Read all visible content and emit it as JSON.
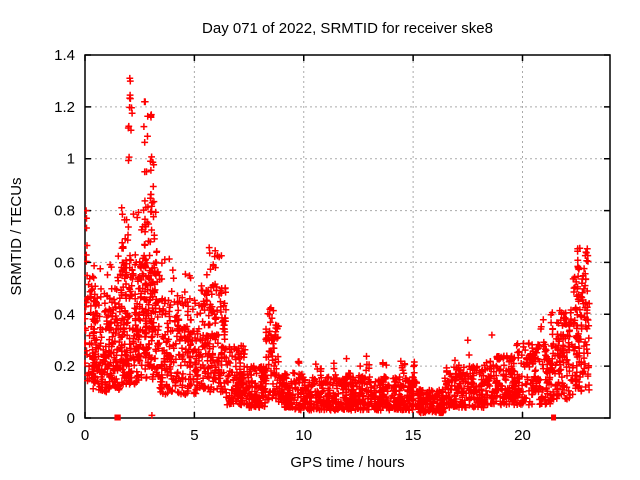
{
  "chart_data": {
    "type": "scatter",
    "title": "Day 071 of 2022, SRMTID for receiver ske8",
    "xlabel": "GPS time / hours",
    "ylabel": "SRMTID / TECUs",
    "xlim": [
      0,
      24
    ],
    "ylim": [
      0,
      1.4
    ],
    "xticks": {
      "values": [
        0,
        5,
        10,
        15,
        20
      ],
      "labels": [
        "0",
        "5",
        "10",
        "15",
        "20"
      ]
    },
    "yticks": {
      "values": [
        0,
        0.2,
        0.4,
        0.6,
        0.8,
        1,
        1.2,
        1.4
      ],
      "labels": [
        "0",
        "0.2",
        "0.4",
        "0.6",
        "0.8",
        "1",
        "1.2",
        "1.4"
      ]
    },
    "grid": true,
    "legend": "none",
    "marker": {
      "shape": "plus",
      "color": "#ff0000",
      "size": 7
    },
    "colors": {
      "axis": "#000000",
      "grid": "#aaaaaa",
      "background": "#ffffff",
      "points": "#ff0000"
    },
    "x_data_range": [
      0,
      23.05
    ],
    "y_max_point": [
      2.05,
      1.31
    ],
    "seed": 20220711,
    "clusters": [
      {
        "x": [
          0.0,
          0.45
        ],
        "n": 70,
        "y": [
          0.14,
          0.55
        ],
        "p": 1.1
      },
      {
        "x": [
          0.02,
          0.12
        ],
        "n": 4,
        "y": [
          0.58,
          0.81
        ],
        "p": 1
      },
      {
        "x": [
          0.35,
          1.6
        ],
        "n": 200,
        "y": [
          0.1,
          0.48
        ],
        "p": 1.2
      },
      {
        "x": [
          0.4,
          1.6
        ],
        "n": 13,
        "y": [
          0.48,
          0.66
        ],
        "p": 1
      },
      {
        "x": [
          1.6,
          2.5
        ],
        "n": 175,
        "y": [
          0.13,
          0.6
        ],
        "p": 1.15
      },
      {
        "x": [
          1.65,
          2.5
        ],
        "n": 20,
        "y": [
          0.6,
          0.82
        ],
        "p": 1
      },
      {
        "x": [
          1.97,
          2.16
        ],
        "n": 12,
        "y": [
          0.84,
          1.31
        ],
        "p": 1
      },
      {
        "x": [
          2.5,
          3.35
        ],
        "n": 175,
        "y": [
          0.15,
          0.62
        ],
        "p": 1.1
      },
      {
        "x": [
          2.55,
          3.3
        ],
        "n": 22,
        "y": [
          0.62,
          0.85
        ],
        "p": 1
      },
      {
        "x": [
          2.64,
          2.88
        ],
        "n": 14,
        "y": [
          0.72,
          1.22
        ],
        "p": 1
      },
      {
        "x": [
          2.96,
          3.17
        ],
        "n": 12,
        "y": [
          0.78,
          1.17
        ],
        "p": 1
      },
      {
        "x": [
          3.35,
          5.3
        ],
        "n": 250,
        "y": [
          0.09,
          0.46
        ],
        "p": 1.25
      },
      {
        "x": [
          3.4,
          5.2
        ],
        "n": 15,
        "y": [
          0.46,
          0.63
        ],
        "p": 1
      },
      {
        "x": [
          5.3,
          6.45
        ],
        "n": 180,
        "y": [
          0.1,
          0.52
        ],
        "p": 1.15
      },
      {
        "x": [
          5.55,
          6.35
        ],
        "n": 13,
        "y": [
          0.52,
          0.66
        ],
        "p": 1
      },
      {
        "x": [
          6.45,
          7.4
        ],
        "n": 115,
        "y": [
          0.05,
          0.28
        ],
        "p": 1.3
      },
      {
        "x": [
          7.4,
          8.25
        ],
        "n": 110,
        "y": [
          0.04,
          0.2
        ],
        "p": 1.3
      },
      {
        "x": [
          8.25,
          8.85
        ],
        "n": 75,
        "y": [
          0.07,
          0.36
        ],
        "p": 1.1
      },
      {
        "x": [
          8.3,
          8.7
        ],
        "n": 6,
        "y": [
          0.36,
          0.43
        ],
        "p": 1
      },
      {
        "x": [
          8.85,
          9.6
        ],
        "n": 85,
        "y": [
          0.04,
          0.18
        ],
        "p": 1.3
      },
      {
        "x": [
          9.6,
          15.2
        ],
        "n": 560,
        "y": [
          0.03,
          0.16
        ],
        "p": 1.35
      },
      {
        "x": [
          9.7,
          9.95
        ],
        "n": 6,
        "y": [
          0.15,
          0.22
        ],
        "p": 1
      },
      {
        "x": [
          10.55,
          10.8
        ],
        "n": 6,
        "y": [
          0.15,
          0.24
        ],
        "p": 1
      },
      {
        "x": [
          11.3,
          11.55
        ],
        "n": 5,
        "y": [
          0.15,
          0.22
        ],
        "p": 1
      },
      {
        "x": [
          11.9,
          12.15
        ],
        "n": 5,
        "y": [
          0.15,
          0.23
        ],
        "p": 1
      },
      {
        "x": [
          12.5,
          12.7
        ],
        "n": 4,
        "y": [
          0.15,
          0.21
        ],
        "p": 1
      },
      {
        "x": [
          12.85,
          13.1
        ],
        "n": 5,
        "y": [
          0.15,
          0.25
        ],
        "p": 1
      },
      {
        "x": [
          13.6,
          13.85
        ],
        "n": 5,
        "y": [
          0.15,
          0.24
        ],
        "p": 1
      },
      {
        "x": [
          14.35,
          14.65
        ],
        "n": 7,
        "y": [
          0.15,
          0.27
        ],
        "p": 1
      },
      {
        "x": [
          14.9,
          15.1
        ],
        "n": 4,
        "y": [
          0.15,
          0.22
        ],
        "p": 1
      },
      {
        "x": [
          15.2,
          16.45
        ],
        "n": 125,
        "y": [
          0.02,
          0.11
        ],
        "p": 1.2
      },
      {
        "x": [
          16.45,
          18.25
        ],
        "n": 185,
        "y": [
          0.04,
          0.2
        ],
        "p": 1.3
      },
      {
        "x": [
          16.9,
          17.1
        ],
        "n": 4,
        "y": [
          0.18,
          0.23
        ],
        "p": 1
      },
      {
        "x": [
          18.25,
          19.7
        ],
        "n": 160,
        "y": [
          0.05,
          0.24
        ],
        "p": 1.25
      },
      {
        "x": [
          19.7,
          21.3
        ],
        "n": 170,
        "y": [
          0.05,
          0.29
        ],
        "p": 1.2
      },
      {
        "x": [
          20.82,
          21.0
        ],
        "n": 4,
        "y": [
          0.29,
          0.38
        ],
        "p": 1
      },
      {
        "x": [
          21.3,
          22.3
        ],
        "n": 135,
        "y": [
          0.07,
          0.42
        ],
        "p": 1.1
      },
      {
        "x": [
          22.3,
          23.05
        ],
        "n": 120,
        "y": [
          0.1,
          0.55
        ],
        "p": 1
      },
      {
        "x": [
          22.45,
          23.0
        ],
        "n": 15,
        "y": [
          0.55,
          0.66
        ],
        "p": 1
      }
    ],
    "notable_points": [
      [
        0.05,
        0.8
      ],
      [
        0.07,
        0.77
      ],
      [
        2.05,
        1.31
      ],
      [
        2.72,
        1.22
      ],
      [
        3.03,
        1.17
      ],
      [
        8.5,
        0.425
      ],
      [
        17.5,
        0.3
      ],
      [
        17.56,
        0.243
      ],
      [
        18.6,
        0.32
      ],
      [
        22.62,
        0.655
      ],
      [
        22.9,
        0.64
      ],
      [
        3.06,
        0.01
      ]
    ],
    "baseline_square_points_x": [
      1.46,
      1.52,
      21.42
    ]
  }
}
